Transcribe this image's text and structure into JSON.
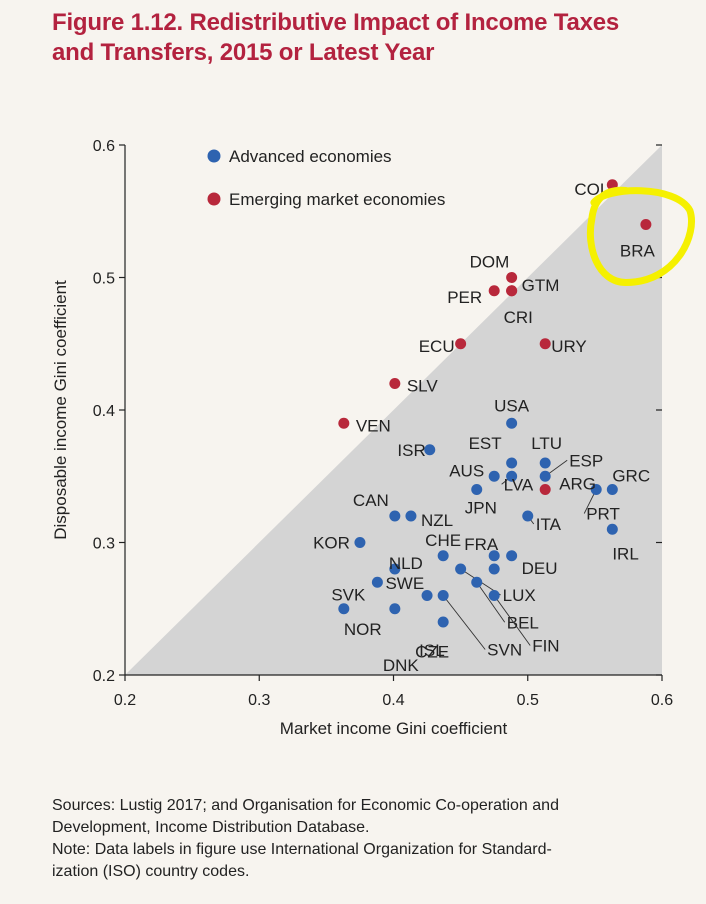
{
  "figure": {
    "title_line1": "Figure 1.12. Redistributive Impact of Income Taxes",
    "title_line2": "and Transfers, 2015 or Latest Year",
    "footnote_line1": "Sources: Lustig 2017; and Organisation for Economic Co-operation and",
    "footnote_line2": "Development, Income Distribution Database.",
    "footnote_line3": "Note: Data labels in figure use International Organization for Standard-",
    "footnote_line4": "ization (ISO) country codes."
  },
  "colors": {
    "advanced": "#2e63b0",
    "emerging": "#b8283b",
    "triangle": "#d4d4d4",
    "highlight": "#f5f000",
    "title": "#b3223f"
  },
  "chart_data": {
    "type": "scatter",
    "xlabel": "Market income Gini coefficient",
    "ylabel": "Disposable income Gini coefficient",
    "xlim": [
      0.2,
      0.6
    ],
    "ylim": [
      0.2,
      0.6
    ],
    "xticks": [
      "0.2",
      "0.3",
      "0.4",
      "0.5",
      "0.6"
    ],
    "yticks": [
      "0.2",
      "0.3",
      "0.4",
      "0.5",
      "0.6"
    ],
    "grid": false,
    "shaded_region": "area below 45-degree line",
    "legend_position": "top-left",
    "series": [
      {
        "name": "Advanced economies",
        "color": "#2e63b0",
        "points": [
          {
            "label": "USA",
            "x": 0.488,
            "y": 0.39
          },
          {
            "label": "ISR",
            "x": 0.427,
            "y": 0.37
          },
          {
            "label": "EST",
            "x": 0.488,
            "y": 0.36
          },
          {
            "label": "LTU",
            "x": 0.513,
            "y": 0.36
          },
          {
            "label": "ESP",
            "x": 0.513,
            "y": 0.35
          },
          {
            "label": "AUS",
            "x": 0.475,
            "y": 0.35
          },
          {
            "label": "LVA",
            "x": 0.488,
            "y": 0.35
          },
          {
            "label": "GRC",
            "x": 0.563,
            "y": 0.34
          },
          {
            "label": "PRT",
            "x": 0.551,
            "y": 0.34
          },
          {
            "label": "JPN",
            "x": 0.462,
            "y": 0.34
          },
          {
            "label": "ITA",
            "x": 0.5,
            "y": 0.32
          },
          {
            "label": "CAN",
            "x": 0.401,
            "y": 0.32
          },
          {
            "label": "NZL",
            "x": 0.413,
            "y": 0.32
          },
          {
            "label": "IRL",
            "x": 0.563,
            "y": 0.31
          },
          {
            "label": "KOR",
            "x": 0.375,
            "y": 0.3
          },
          {
            "label": "CHE",
            "x": 0.437,
            "y": 0.29
          },
          {
            "label": "FRA",
            "x": 0.475,
            "y": 0.29
          },
          {
            "label": "DEU",
            "x": 0.488,
            "y": 0.29
          },
          {
            "label": "NLD",
            "x": 0.401,
            "y": 0.28
          },
          {
            "label": "SWE",
            "x": 0.475,
            "y": 0.28
          },
          {
            "label": "LUX",
            "x": 0.45,
            "y": 0.28
          },
          {
            "label": "SVK",
            "x": 0.388,
            "y": 0.27
          },
          {
            "label": "BEL",
            "x": 0.462,
            "y": 0.27
          },
          {
            "label": "FIN",
            "x": 0.475,
            "y": 0.26
          },
          {
            "label": "SVN",
            "x": 0.437,
            "y": 0.26
          },
          {
            "label": "CZE",
            "x": 0.425,
            "y": 0.26
          },
          {
            "label": "DNK",
            "x": 0.401,
            "y": 0.25
          },
          {
            "label": "NOR",
            "x": 0.363,
            "y": 0.25
          },
          {
            "label": "ISL",
            "x": 0.437,
            "y": 0.24
          }
        ]
      },
      {
        "name": "Emerging market economies",
        "color": "#b8283b",
        "points": [
          {
            "label": "COL",
            "x": 0.563,
            "y": 0.57
          },
          {
            "label": "BRA",
            "x": 0.588,
            "y": 0.54
          },
          {
            "label": "DOM",
            "x": 0.488,
            "y": 0.5
          },
          {
            "label": "GTM",
            "x": 0.488,
            "y": 0.49
          },
          {
            "label": "PER",
            "x": 0.475,
            "y": 0.49
          },
          {
            "label": "CRI",
            "x": 0.488,
            "y": 0.49
          },
          {
            "label": "ECU",
            "x": 0.45,
            "y": 0.45
          },
          {
            "label": "URY",
            "x": 0.513,
            "y": 0.45
          },
          {
            "label": "SLV",
            "x": 0.401,
            "y": 0.42
          },
          {
            "label": "VEN",
            "x": 0.363,
            "y": 0.39
          },
          {
            "label": "ARG",
            "x": 0.513,
            "y": 0.34
          }
        ]
      }
    ],
    "annotations": [
      {
        "type": "hand-drawn highlight circle",
        "around": "BRA"
      }
    ]
  }
}
